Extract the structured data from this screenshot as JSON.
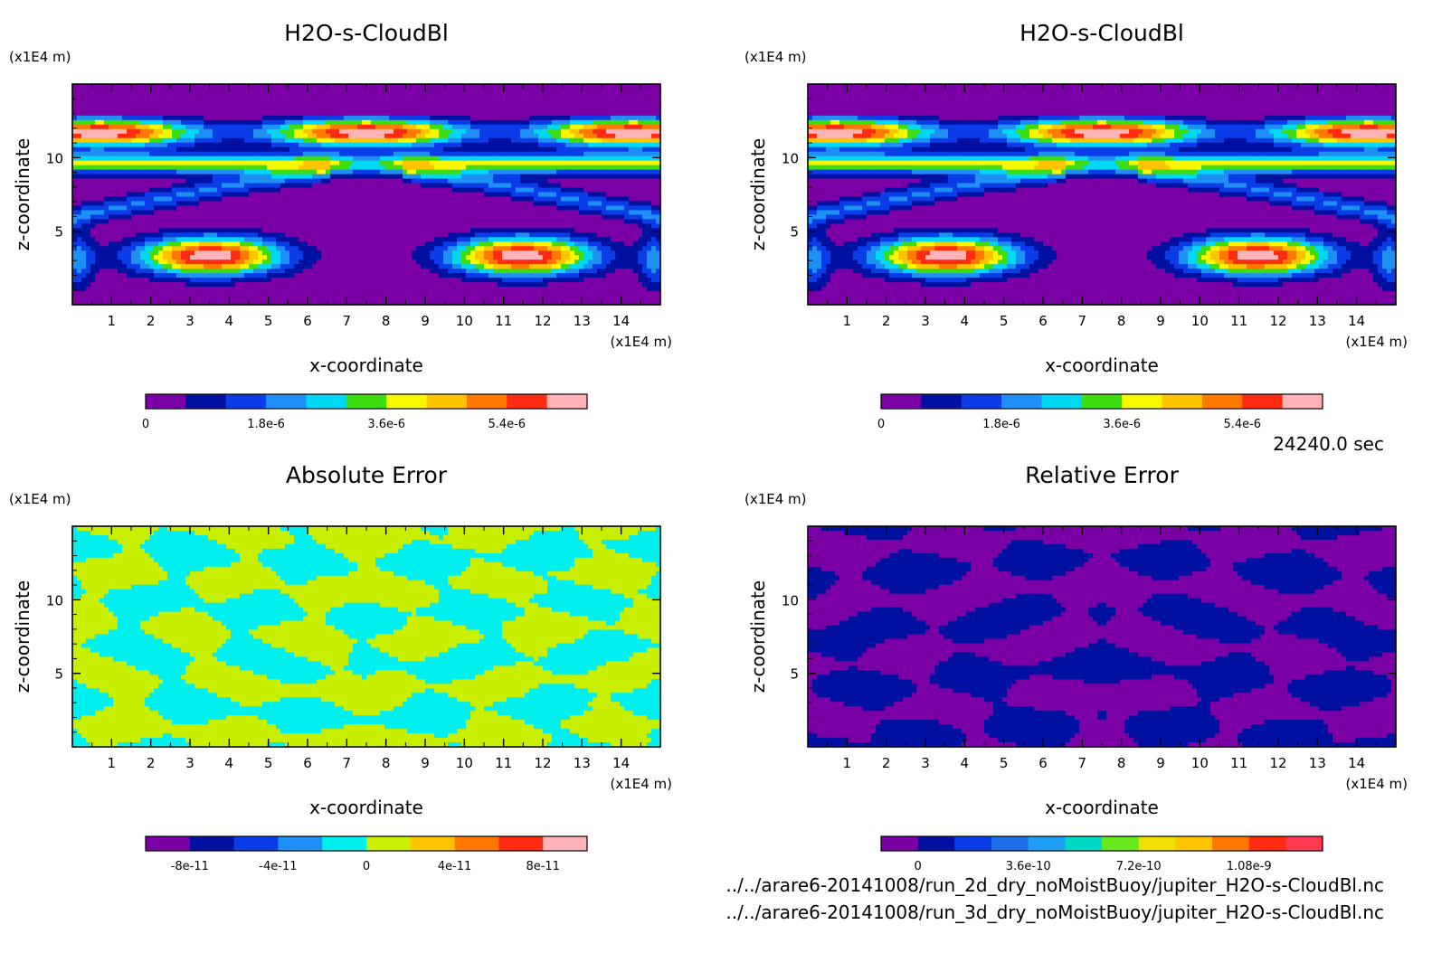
{
  "chart_data": [
    {
      "type": "heatmap",
      "title": "H2O-s-CloudBl",
      "xlabel": "x-coordinate",
      "ylabel": "z-coordinate",
      "x_unit": "(x1E4 m)",
      "y_unit": "(x1E4 m)",
      "xlim": [
        0,
        15
      ],
      "ylim": [
        0,
        15
      ],
      "x_ticks": [
        "1",
        "2",
        "3",
        "4",
        "5",
        "6",
        "7",
        "8",
        "9",
        "10",
        "11",
        "12",
        "13",
        "14"
      ],
      "y_ticks": [
        "5",
        "10"
      ],
      "field": "cloud",
      "colorbar": {
        "levels": 11,
        "colors": [
          "#7a00a6",
          "#0010a0",
          "#0a3de8",
          "#1e8ff5",
          "#00d8f5",
          "#3ddd12",
          "#f7f700",
          "#ffc400",
          "#ff7800",
          "#ff2b10",
          "#ffb3b6"
        ],
        "tick_labels": [
          "0",
          "1.8e-6",
          "3.6e-6",
          "5.4e-6"
        ],
        "tick_index": [
          0,
          3,
          6,
          9
        ]
      }
    },
    {
      "type": "heatmap",
      "title": "H2O-s-CloudBl",
      "xlabel": "x-coordinate",
      "ylabel": "z-coordinate",
      "x_unit": "(x1E4 m)",
      "y_unit": "(x1E4 m)",
      "xlim": [
        0,
        15
      ],
      "ylim": [
        0,
        15
      ],
      "x_ticks": [
        "1",
        "2",
        "3",
        "4",
        "5",
        "6",
        "7",
        "8",
        "9",
        "10",
        "11",
        "12",
        "13",
        "14"
      ],
      "y_ticks": [
        "5",
        "10"
      ],
      "field": "cloud",
      "colorbar": {
        "levels": 11,
        "colors": [
          "#7a00a6",
          "#0010a0",
          "#0a3de8",
          "#1e8ff5",
          "#00d8f5",
          "#3ddd12",
          "#f7f700",
          "#ffc400",
          "#ff7800",
          "#ff2b10",
          "#ffb3b6"
        ],
        "tick_labels": [
          "0",
          "1.8e-6",
          "3.6e-6",
          "5.4e-6"
        ],
        "tick_index": [
          0,
          3,
          6,
          9
        ]
      }
    },
    {
      "type": "heatmap",
      "title": "Absolute Error",
      "xlabel": "x-coordinate",
      "ylabel": "z-coordinate",
      "x_unit": "(x1E4 m)",
      "y_unit": "(x1E4 m)",
      "xlim": [
        0,
        15
      ],
      "ylim": [
        0,
        15
      ],
      "x_ticks": [
        "1",
        "2",
        "3",
        "4",
        "5",
        "6",
        "7",
        "8",
        "9",
        "10",
        "11",
        "12",
        "13",
        "14"
      ],
      "y_ticks": [
        "5",
        "10"
      ],
      "field": "abs",
      "colorbar": {
        "levels": 10,
        "colors": [
          "#7a00a6",
          "#0010a0",
          "#0a3de8",
          "#1e8ff5",
          "#00f0f0",
          "#c8ee00",
          "#ffc400",
          "#ff7800",
          "#ff2b10",
          "#ffb3b6"
        ],
        "tick_labels": [
          "-8e-11",
          "-4e-11",
          "0",
          "4e-11",
          "8e-11"
        ],
        "tick_index": [
          1,
          3,
          5,
          7,
          9
        ]
      }
    },
    {
      "type": "heatmap",
      "title": "Relative Error",
      "xlabel": "x-coordinate",
      "ylabel": "z-coordinate",
      "x_unit": "(x1E4 m)",
      "y_unit": "(x1E4 m)",
      "xlim": [
        0,
        15
      ],
      "ylim": [
        0,
        15
      ],
      "x_ticks": [
        "1",
        "2",
        "3",
        "4",
        "5",
        "6",
        "7",
        "8",
        "9",
        "10",
        "11",
        "12",
        "13",
        "14"
      ],
      "y_ticks": [
        "5",
        "10"
      ],
      "field": "rel",
      "colorbar": {
        "levels": 12,
        "colors": [
          "#7a00a6",
          "#0010a0",
          "#0a3de8",
          "#1e6ee8",
          "#1e9ff5",
          "#00d8c8",
          "#66e81e",
          "#f0e000",
          "#ffc400",
          "#ff7800",
          "#ff2b10",
          "#ff3a50"
        ],
        "tick_labels": [
          "0",
          "3.6e-10",
          "7.2e-10",
          "1.08e-9"
        ],
        "tick_index": [
          1,
          4,
          7,
          10
        ]
      }
    }
  ],
  "time_label": "24240.0 sec",
  "file_paths": [
    "../../arare6-20141008/run_2d_dry_noMoistBuoy/jupiter_H2O-s-CloudBl.nc",
    "../../arare6-20141008/run_3d_dry_noMoistBuoy/jupiter_H2O-s-CloudBl.nc"
  ]
}
